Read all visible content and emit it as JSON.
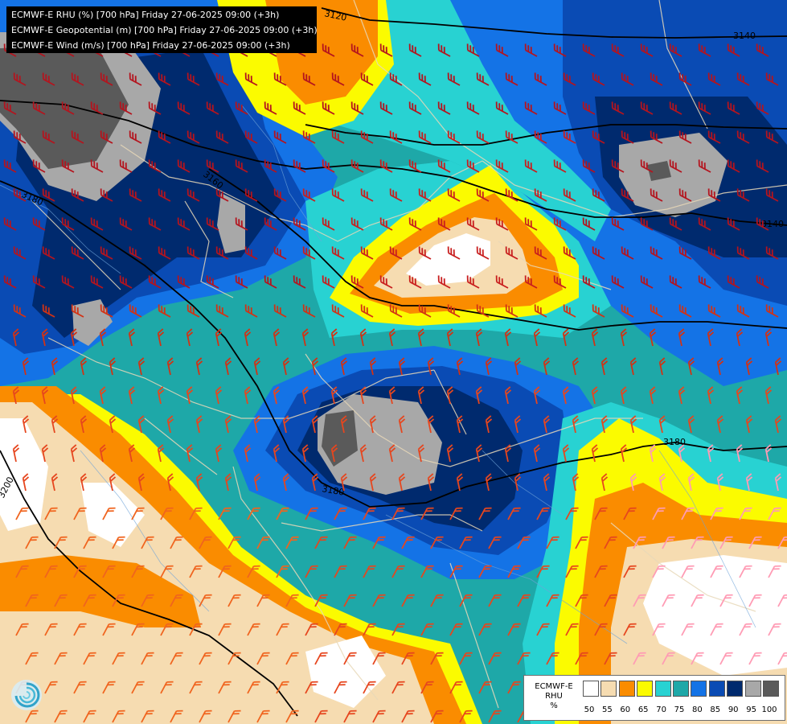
{
  "header": {
    "lines": [
      "ECMWF-E RHU (%) [700 hPa] Friday 27-06-2025 09:00 (+3h)",
      "ECMWF-E Geopotential (m) [700 hPa] Friday 27-06-2025 09:00 (+3h)",
      "ECMWF-E Wind (m/s) [700 hPa] Friday 27-06-2025 09:00 (+3h)"
    ]
  },
  "contours": {
    "labels": [
      "3120",
      "3140",
      "3160",
      "3180",
      "3180",
      "3140",
      "3180",
      "3200"
    ]
  },
  "legend": {
    "name_lines": [
      "ECMWF-E",
      "RHU",
      "%"
    ],
    "ticks": [
      "50",
      "55",
      "60",
      "65",
      "70",
      "75",
      "80",
      "85",
      "90",
      "95",
      "100"
    ],
    "colors": [
      "#ffffff",
      "#f6dcb1",
      "#fa8c00",
      "#fbfb00",
      "#28d2d2",
      "#1ea8a8",
      "#1473e6",
      "#0a4bb4",
      "#002a6e",
      "#a8a8a8",
      "#5a5a5a"
    ]
  },
  "icons": {
    "logo": "swirl-logo-icon"
  }
}
